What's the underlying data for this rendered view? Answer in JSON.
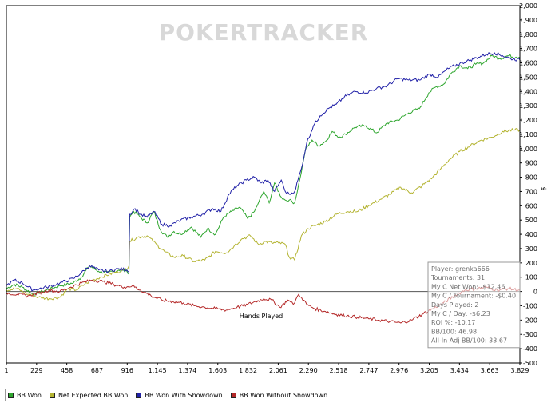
{
  "chart_data": {
    "type": "line",
    "watermark": "POKERTRACKER",
    "xlabel": "Hands Played",
    "ylabel": "$",
    "xlim": [
      1,
      3829
    ],
    "ylim": [
      -500,
      2000
    ],
    "x_ticks": [
      "1",
      "229",
      "458",
      "687",
      "916",
      "1,145",
      "1,374",
      "1,603",
      "1,832",
      "2,061",
      "2,290",
      "2,518",
      "2,747",
      "2,976",
      "3,205",
      "3,434",
      "3,663",
      "3,829"
    ],
    "y_ticks": [
      "2,000",
      "1,900",
      "1,800",
      "1,700",
      "1,600",
      "1,500",
      "1,400",
      "1,300",
      "1,200",
      "1,100",
      "1,000",
      "900",
      "800",
      "700",
      "600",
      "500",
      "400",
      "300",
      "200",
      "100",
      "0",
      "-100",
      "-200",
      "-300",
      "-400",
      "-500"
    ],
    "series": [
      {
        "name": "BB Won",
        "color": "#2ea62e",
        "x": [
          1,
          60,
          120,
          200,
          300,
          400,
          500,
          560,
          620,
          690,
          760,
          840,
          900,
          915,
          920,
          950,
          1000,
          1050,
          1100,
          1150,
          1200,
          1250,
          1300,
          1380,
          1450,
          1500,
          1560,
          1620,
          1680,
          1740,
          1800,
          1850,
          1880,
          1920,
          1960,
          2000,
          2050,
          2080,
          2110,
          2150,
          2190,
          2230,
          2280,
          2330,
          2380,
          2430,
          2480,
          2530,
          2600,
          2680,
          2760,
          2840,
          2920,
          3000,
          3080,
          3150,
          3200,
          3260,
          3320,
          3380,
          3440,
          3500,
          3560,
          3620,
          3680,
          3740,
          3800,
          3829
        ],
        "values": [
          20,
          50,
          30,
          -20,
          10,
          40,
          60,
          100,
          180,
          140,
          130,
          150,
          140,
          130,
          520,
          560,
          520,
          480,
          560,
          430,
          380,
          420,
          400,
          450,
          380,
          440,
          400,
          520,
          560,
          590,
          510,
          560,
          620,
          700,
          620,
          760,
          660,
          640,
          640,
          620,
          790,
          990,
          1060,
          1020,
          1050,
          1120,
          1080,
          1100,
          1150,
          1160,
          1110,
          1180,
          1200,
          1250,
          1280,
          1390,
          1430,
          1450,
          1530,
          1580,
          1560,
          1590,
          1600,
          1650,
          1630,
          1650,
          1640,
          1640
        ]
      },
      {
        "name": "Net Expected BB Won",
        "color": "#b4b432",
        "x": [
          1,
          80,
          160,
          240,
          320,
          400,
          460,
          520,
          600,
          700,
          800,
          880,
          915,
          920,
          980,
          1050,
          1120,
          1180,
          1250,
          1320,
          1400,
          1480,
          1560,
          1640,
          1700,
          1760,
          1820,
          1880,
          1930,
          1980,
          2030,
          2080,
          2110,
          2150,
          2200,
          2250,
          2300,
          2380,
          2460,
          2540,
          2620,
          2700,
          2780,
          2860,
          2940,
          3020,
          3100,
          3180,
          3240,
          3300,
          3380,
          3460,
          3540,
          3620,
          3700,
          3780,
          3829
        ],
        "values": [
          10,
          20,
          -20,
          -40,
          -50,
          -40,
          20,
          10,
          60,
          100,
          130,
          150,
          180,
          350,
          380,
          390,
          330,
          280,
          240,
          250,
          210,
          220,
          280,
          270,
          320,
          370,
          390,
          330,
          350,
          340,
          340,
          330,
          240,
          220,
          390,
          440,
          460,
          490,
          540,
          560,
          560,
          600,
          640,
          680,
          730,
          690,
          740,
          800,
          860,
          920,
          980,
          1020,
          1060,
          1080,
          1120,
          1130,
          1130
        ]
      },
      {
        "name": "BB Won With Showdown",
        "color": "#2222a8",
        "x": [
          1,
          60,
          120,
          200,
          300,
          400,
          500,
          560,
          620,
          690,
          760,
          840,
          900,
          915,
          920,
          960,
          1000,
          1050,
          1100,
          1160,
          1220,
          1300,
          1380,
          1460,
          1540,
          1600,
          1660,
          1720,
          1790,
          1850,
          1900,
          1950,
          2000,
          2050,
          2080,
          2110,
          2150,
          2200,
          2240,
          2290,
          2340,
          2400,
          2460,
          2520,
          2600,
          2680,
          2760,
          2840,
          2920,
          3000,
          3080,
          3160,
          3220,
          3280,
          3340,
          3400,
          3460,
          3520,
          3580,
          3640,
          3700,
          3760,
          3829
        ],
        "values": [
          40,
          80,
          60,
          10,
          30,
          60,
          90,
          130,
          180,
          150,
          140,
          160,
          150,
          140,
          540,
          580,
          540,
          520,
          560,
          470,
          460,
          500,
          520,
          540,
          580,
          560,
          680,
          740,
          780,
          800,
          760,
          780,
          700,
          780,
          700,
          680,
          700,
          860,
          1040,
          1160,
          1230,
          1280,
          1310,
          1360,
          1400,
          1390,
          1420,
          1440,
          1490,
          1480,
          1480,
          1520,
          1500,
          1550,
          1580,
          1600,
          1620,
          1640,
          1660,
          1670,
          1650,
          1630,
          1620
        ]
      },
      {
        "name": "BB Won Without Showdown",
        "color": "#b42828",
        "x": [
          1,
          80,
          160,
          240,
          320,
          400,
          480,
          560,
          640,
          720,
          800,
          880,
          940,
          1000,
          1080,
          1160,
          1240,
          1320,
          1400,
          1480,
          1560,
          1640,
          1720,
          1800,
          1860,
          1920,
          1980,
          2040,
          2100,
          2140,
          2180,
          2200,
          2240,
          2300,
          2380,
          2460,
          2540,
          2620,
          2700,
          2780,
          2860,
          2940,
          3020,
          3100,
          3180,
          3260,
          3340,
          3420,
          3500,
          3580,
          3660,
          3740,
          3829
        ],
        "values": [
          -10,
          -20,
          -30,
          -10,
          10,
          0,
          30,
          60,
          80,
          70,
          50,
          30,
          40,
          10,
          -30,
          -60,
          -70,
          -80,
          -100,
          -110,
          -120,
          -130,
          -110,
          -90,
          -70,
          -50,
          -60,
          -110,
          -60,
          -90,
          -20,
          -40,
          -90,
          -120,
          -140,
          -160,
          -170,
          -180,
          -190,
          -200,
          -210,
          -220,
          -200,
          -160,
          -120,
          -80,
          -30,
          10,
          20,
          30,
          10,
          20,
          10
        ]
      }
    ]
  },
  "stats_panel": {
    "lines": [
      "Player: grenka666",
      "Tournaments: 31",
      "My C Net Won: -$12.46",
      "My C / Tournament: -$0.40",
      "Days Played: 2",
      "My C / Day: -$6.23",
      "ROI %: -10.17",
      "BB/100: 46.98",
      "All-In Adj BB/100: 33.67"
    ]
  },
  "colors": {
    "zero_line": "#555555",
    "axis": "#000000",
    "panel_border": "#9a9a9a"
  }
}
